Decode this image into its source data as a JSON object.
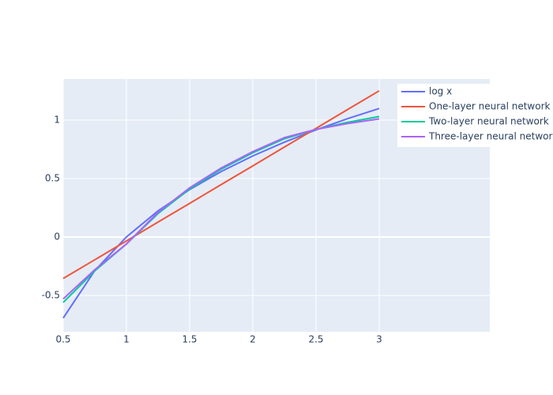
{
  "chart_data": {
    "type": "line",
    "x": [
      0.5,
      0.75,
      1,
      1.25,
      1.5,
      1.75,
      2,
      2.25,
      2.5,
      2.75,
      3
    ],
    "series": [
      {
        "name": "log x",
        "color": "#636efa",
        "values": [
          -0.693,
          -0.288,
          0,
          0.223,
          0.405,
          0.56,
          0.693,
          0.811,
          0.916,
          1.012,
          1.099
        ]
      },
      {
        "name": "One-layer neural network",
        "color": "#ef553b",
        "values": [
          -0.355,
          -0.195,
          -0.034,
          0.127,
          0.287,
          0.448,
          0.608,
          0.769,
          0.929,
          1.09,
          1.25
        ]
      },
      {
        "name": "Two-layer neural network",
        "color": "#00cc96",
        "values": [
          -0.56,
          -0.29,
          -0.06,
          0.2,
          0.41,
          0.58,
          0.72,
          0.84,
          0.92,
          0.98,
          1.03
        ]
      },
      {
        "name": "Three-layer neural network",
        "color": "#ab63fa",
        "values": [
          -0.53,
          -0.28,
          -0.06,
          0.21,
          0.42,
          0.59,
          0.73,
          0.85,
          0.92,
          0.97,
          1.01
        ]
      }
    ],
    "xlim": [
      0.5,
      3.875
    ],
    "xticks": [
      0.5,
      1,
      1.5,
      2,
      2.5,
      3
    ],
    "ylim": [
      -0.811,
      1.351
    ],
    "yticks": [
      -0.5,
      0,
      0.5,
      1
    ],
    "grid": true
  }
}
